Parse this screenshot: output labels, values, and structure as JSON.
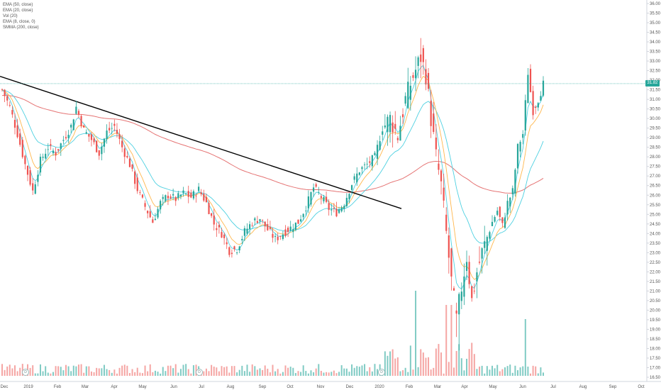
{
  "legend": {
    "items": [
      "EMA (50, close)",
      "EMA (20, close)",
      "Vol (20)",
      "EMA (8, close, 0)",
      "SMMA (200, close)"
    ]
  },
  "colors": {
    "up": "#26a69a",
    "down": "#ef5350",
    "ema50": "#4dd0e1",
    "ema20": "#ffb74d",
    "ema8": "#4dd0e1",
    "smma200": "#e57373",
    "trendline": "#000000",
    "grid": "#f0f3fa",
    "axis_text": "#555555",
    "price_tag_bg": "#26a69a"
  },
  "last_price_label": "31.82",
  "chart_data": {
    "type": "candlestick",
    "y_axis_labels": [
      "16.50",
      "17.00",
      "17.50",
      "18.00",
      "18.50",
      "19.00",
      "19.50",
      "20.00",
      "20.50",
      "21.00",
      "21.50",
      "22.00",
      "22.50",
      "23.00",
      "23.50",
      "24.00",
      "24.50",
      "25.00",
      "25.50",
      "26.00",
      "26.50",
      "27.00",
      "27.50",
      "28.00",
      "28.50",
      "29.00",
      "29.50",
      "30.00",
      "30.50",
      "31.00",
      "31.50",
      "32.00",
      "32.50",
      "33.00",
      "33.50",
      "34.00",
      "34.50",
      "35.00",
      "35.50",
      "36.00"
    ],
    "x_axis_labels": [
      "Dec",
      "2019",
      "Feb",
      "Mar",
      "Apr",
      "May",
      "Jun",
      "Jul",
      "Aug",
      "Sep",
      "Oct",
      "Nov",
      "Dec",
      "2020",
      "Feb",
      "Mar",
      "Apr",
      "May",
      "Jun",
      "Jul",
      "Aug",
      "Sep",
      "Oct"
    ],
    "ylim": [
      16.5,
      36
    ],
    "last_price": 31.82,
    "series": [
      {
        "name": "EMA (50, close)"
      },
      {
        "name": "EMA (20, close)"
      },
      {
        "name": "EMA (8, close, 0)"
      },
      {
        "name": "SMMA (200, close)"
      },
      {
        "name": "Vol (20)"
      }
    ],
    "price_path": [
      {
        "t": 0,
        "p": 31.5
      },
      {
        "t": 3,
        "p": 30.6
      },
      {
        "t": 6,
        "p": 29.2
      },
      {
        "t": 9,
        "p": 27.6
      },
      {
        "t": 12,
        "p": 26.2
      },
      {
        "t": 15,
        "p": 27.8
      },
      {
        "t": 18,
        "p": 28.5
      },
      {
        "t": 21,
        "p": 28.2
      },
      {
        "t": 24,
        "p": 28.9
      },
      {
        "t": 27,
        "p": 29.6
      },
      {
        "t": 29,
        "p": 30.6
      },
      {
        "t": 32,
        "p": 29.4
      },
      {
        "t": 35,
        "p": 28.9
      },
      {
        "t": 38,
        "p": 28.2
      },
      {
        "t": 41,
        "p": 29.3
      },
      {
        "t": 44,
        "p": 29.6
      },
      {
        "t": 47,
        "p": 28.5
      },
      {
        "t": 50,
        "p": 27.6
      },
      {
        "t": 53,
        "p": 26.3
      },
      {
        "t": 56,
        "p": 25.4
      },
      {
        "t": 59,
        "p": 24.6
      },
      {
        "t": 62,
        "p": 25.6
      },
      {
        "t": 65,
        "p": 26.0
      },
      {
        "t": 68,
        "p": 25.8
      },
      {
        "t": 71,
        "p": 26.1
      },
      {
        "t": 74,
        "p": 25.9
      },
      {
        "t": 77,
        "p": 26.3
      },
      {
        "t": 80,
        "p": 25.6
      },
      {
        "t": 83,
        "p": 24.5
      },
      {
        "t": 86,
        "p": 24.0
      },
      {
        "t": 89,
        "p": 23.1
      },
      {
        "t": 92,
        "p": 23.2
      },
      {
        "t": 95,
        "p": 24.1
      },
      {
        "t": 98,
        "p": 24.6
      },
      {
        "t": 101,
        "p": 24.8
      },
      {
        "t": 104,
        "p": 24.2
      },
      {
        "t": 107,
        "p": 23.7
      },
      {
        "t": 110,
        "p": 24.0
      },
      {
        "t": 113,
        "p": 24.3
      },
      {
        "t": 116,
        "p": 24.6
      },
      {
        "t": 119,
        "p": 25.4
      },
      {
        "t": 122,
        "p": 26.4
      },
      {
        "t": 125,
        "p": 25.9
      },
      {
        "t": 128,
        "p": 25.3
      },
      {
        "t": 131,
        "p": 25.1
      },
      {
        "t": 134,
        "p": 25.6
      },
      {
        "t": 137,
        "p": 26.6
      },
      {
        "t": 140,
        "p": 27.3
      },
      {
        "t": 143,
        "p": 27.6
      },
      {
        "t": 146,
        "p": 28.0
      },
      {
        "t": 149,
        "p": 29.5
      },
      {
        "t": 152,
        "p": 30.0
      },
      {
        "t": 155,
        "p": 29.1
      },
      {
        "t": 158,
        "p": 31.0
      },
      {
        "t": 161,
        "p": 32.2
      },
      {
        "t": 164,
        "p": 33.2
      },
      {
        "t": 166,
        "p": 32.3
      },
      {
        "t": 168,
        "p": 30.0
      },
      {
        "t": 170,
        "p": 28.0
      },
      {
        "t": 172,
        "p": 26.5
      },
      {
        "t": 174,
        "p": 24.0
      },
      {
        "t": 176,
        "p": 21.5
      },
      {
        "t": 178,
        "p": 19.5
      },
      {
        "t": 180,
        "p": 21.2
      },
      {
        "t": 182,
        "p": 22.8
      },
      {
        "t": 184,
        "p": 20.5
      },
      {
        "t": 186,
        "p": 22.0
      },
      {
        "t": 188,
        "p": 23.0
      },
      {
        "t": 190,
        "p": 23.8
      },
      {
        "t": 192,
        "p": 24.6
      },
      {
        "t": 194,
        "p": 25.2
      },
      {
        "t": 196,
        "p": 24.4
      },
      {
        "t": 198,
        "p": 25.6
      },
      {
        "t": 200,
        "p": 26.2
      },
      {
        "t": 202,
        "p": 28.5
      },
      {
        "t": 204,
        "p": 29.2
      },
      {
        "t": 206,
        "p": 32.4
      },
      {
        "t": 208,
        "p": 30.4
      },
      {
        "t": 210,
        "p": 31.0
      },
      {
        "t": 212,
        "p": 31.8
      }
    ]
  }
}
